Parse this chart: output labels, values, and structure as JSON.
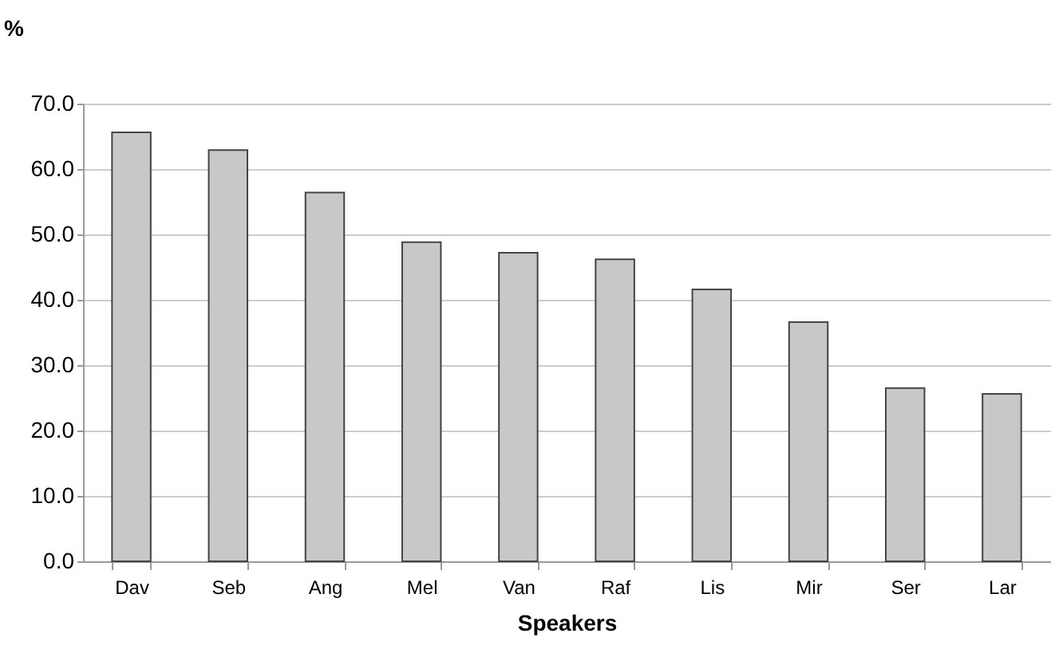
{
  "chart_data": {
    "type": "bar",
    "xlabel": "Speakers",
    "ylabel": "%",
    "categories": [
      "Dav",
      "Seb",
      "Ang",
      "Mel",
      "Van",
      "Raf",
      "Lis",
      "Mir",
      "Ser",
      "Lar"
    ],
    "values": [
      65.6,
      62.9,
      56.4,
      48.8,
      47.2,
      46.2,
      41.6,
      36.6,
      26.5,
      25.6
    ],
    "color": "#c8c8c8",
    "ylim": [
      0,
      70
    ],
    "yticks": [
      {
        "value": 0,
        "label": "0.0"
      },
      {
        "value": 10,
        "label": "10.0"
      },
      {
        "value": 20,
        "label": "20.0"
      },
      {
        "value": 30,
        "label": "30.0"
      },
      {
        "value": 40,
        "label": "40.0"
      },
      {
        "value": 50,
        "label": "50.0"
      },
      {
        "value": 60,
        "label": "60.0"
      },
      {
        "value": 70,
        "label": "70.0"
      }
    ],
    "grid": "y"
  }
}
